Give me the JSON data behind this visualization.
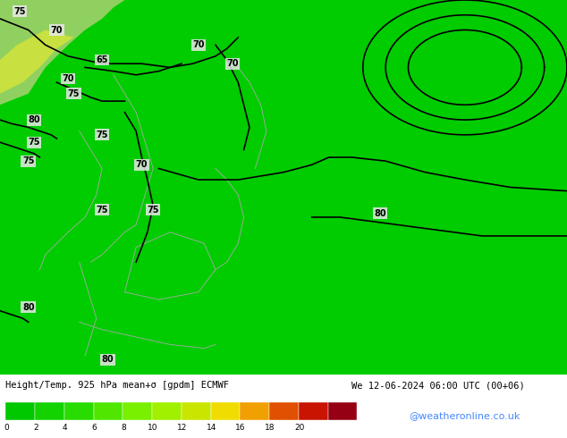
{
  "title_left": "Height/Temp. 925 hPa mean+σ [gpdm] ECMWF",
  "title_right": "We 12-06-2024 06:00 UTC (00+06)",
  "colorbar_values": [
    0,
    2,
    4,
    6,
    8,
    10,
    12,
    14,
    16,
    18,
    20
  ],
  "colorbar_colors": [
    "#00c800",
    "#14d200",
    "#28dc00",
    "#50e600",
    "#78f000",
    "#a0f000",
    "#c8e600",
    "#f0dc00",
    "#f0a000",
    "#e05000",
    "#c81400",
    "#960014"
  ],
  "bg_color": "#00cc00",
  "map_bg": "#00cc00",
  "contour_color": "#000000",
  "label_bg": "#e8e8e8",
  "copyright_text": "@weatheronline.co.uk",
  "copyright_color": "#4488ff",
  "bottom_bar_color": "#000000",
  "fig_width": 6.34,
  "fig_height": 4.9,
  "dpi": 100
}
